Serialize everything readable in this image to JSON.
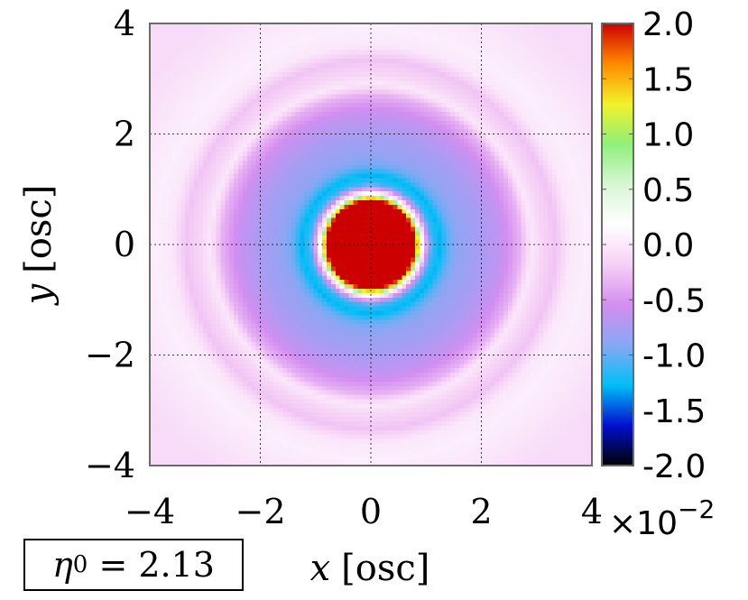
{
  "chart_data": {
    "type": "heatmap",
    "xlabel_symbol": "x",
    "xlabel_unit": "[osc]",
    "ylabel_symbol": "y",
    "ylabel_unit": "[osc]",
    "xlim": [
      -4,
      4
    ],
    "ylim": [
      -4,
      4
    ],
    "x_ticks": [
      "−4",
      "−2",
      "0",
      "2",
      "4"
    ],
    "y_ticks": [
      "4",
      "2",
      "0",
      "−2",
      "−4"
    ],
    "grid": true,
    "colorbar": {
      "range": [
        -2.0,
        2.0
      ],
      "ticks": [
        "2.0",
        "1.5",
        "1.0",
        "0.5",
        "0.0",
        "-0.5",
        "-1.0",
        "-1.5",
        "-2.0"
      ],
      "multiplier_base": "×10",
      "multiplier_exp": "−2",
      "colors": [
        "#000000",
        "#0010d0",
        "#00bff6",
        "#86a8f4",
        "#d48ef0",
        "#f6d0f6",
        "#ffffff",
        "#d8f6d4",
        "#8ef07a",
        "#f2f22a",
        "#ff8a00",
        "#cc0000"
      ]
    },
    "profile": {
      "description_units": "radius r in osc units, value in units of 1e-2",
      "r": [
        0.0,
        0.8,
        0.86,
        0.9,
        0.94,
        1.0,
        1.1,
        1.25,
        1.4,
        1.6,
        2.0,
        2.4,
        2.7,
        2.9,
        3.1,
        3.35,
        3.6,
        3.9,
        4.3,
        5.0
      ],
      "value": [
        2.0,
        2.0,
        1.1,
        0.4,
        0.0,
        -0.4,
        -1.1,
        -1.3,
        -1.0,
        -0.85,
        -0.75,
        -0.6,
        -0.35,
        0.0,
        -0.15,
        -0.25,
        0.0,
        0.05,
        0.0,
        -0.1
      ]
    },
    "annotation": {
      "symbol": "η",
      "subscript": "0",
      "equals": "= 2.13"
    }
  }
}
